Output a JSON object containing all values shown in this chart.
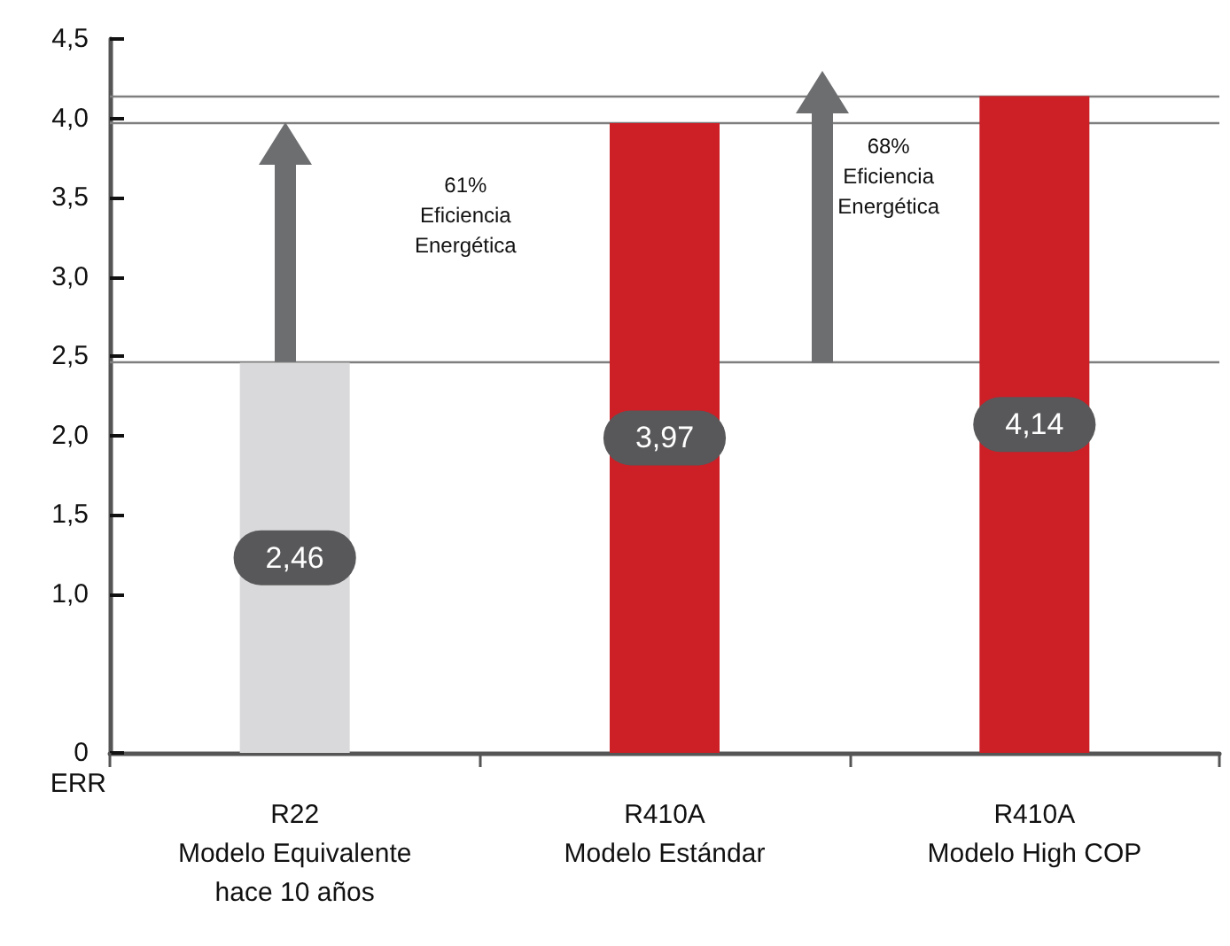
{
  "chart_data": {
    "type": "bar",
    "categories": [
      "R22\nModelo Equivalente\nhace 10 años",
      "R410A\nModelo Estándar",
      "R410A\nModelo High COP"
    ],
    "values": [
      2.46,
      3.97,
      4.14
    ],
    "colors": [
      "#d9d9db",
      "#cc1f26",
      "#cc1f26"
    ],
    "value_labels": [
      "2,46",
      "3,97",
      "4,14"
    ],
    "ylabel": "ERR",
    "ylim": [
      0,
      4.5
    ],
    "yticks": [
      0,
      {
        "value": 1,
        "label": "1,0"
      },
      {
        "value": 1.5,
        "label": "1,5"
      },
      {
        "value": 2,
        "label": "2,0"
      },
      {
        "value": 2.5,
        "label": "2,5"
      },
      {
        "value": 3,
        "label": "3,0"
      },
      {
        "value": 3.5,
        "label": "3,5"
      },
      {
        "value": 4,
        "label": "4,0"
      },
      {
        "value": 4.5,
        "label": "4,5"
      }
    ],
    "ref_lines": [
      {
        "axis": "y",
        "value": 4.14,
        "label": null,
        "color": "#7f7f7f"
      },
      {
        "axis": "y",
        "value": 3.97,
        "label": null,
        "color": "#7f7f7f"
      },
      {
        "axis": "y",
        "value": 2.46,
        "label": null,
        "color": "#7f7f7f"
      }
    ],
    "annotations": [
      "61%\nEficiencia\nEnergética",
      "68%\nEficiencia\nEnergética"
    ],
    "grid": false
  }
}
